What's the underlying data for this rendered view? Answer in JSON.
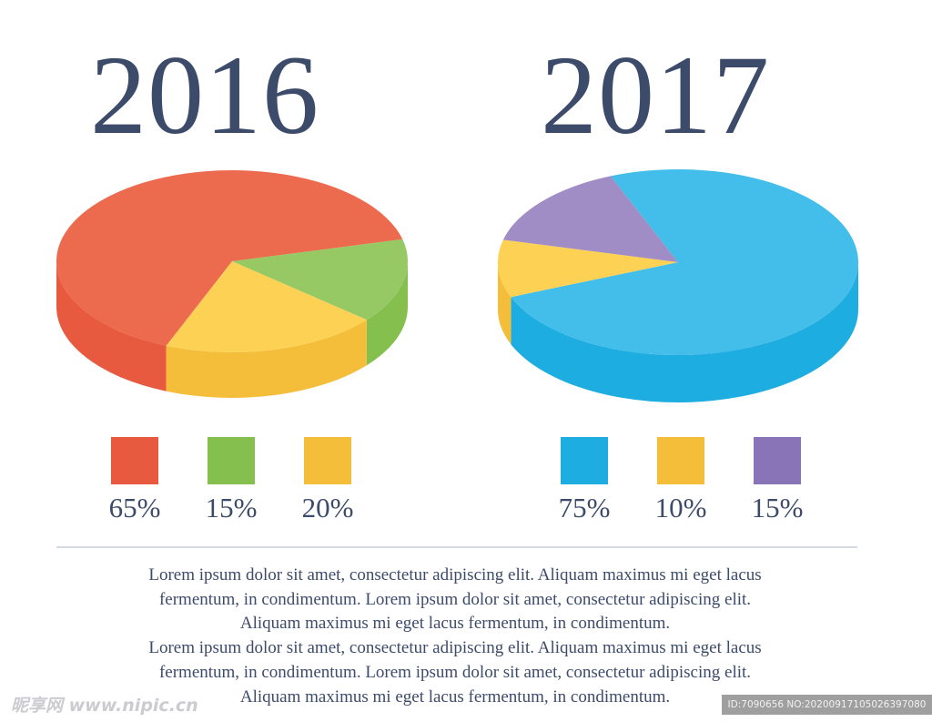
{
  "chart_data": [
    {
      "type": "pie",
      "title": "2016",
      "slices": [
        {
          "label": "65%",
          "value": 65,
          "color": "#ec6b4f",
          "side_color": "#e85a3f"
        },
        {
          "label": "15%",
          "value": 15,
          "color": "#96c964",
          "side_color": "#85bf4d"
        },
        {
          "label": "20%",
          "value": 20,
          "color": "#fdd154",
          "side_color": "#f5be3a"
        }
      ]
    },
    {
      "type": "pie",
      "title": "2017",
      "slices": [
        {
          "label": "75%",
          "value": 75,
          "color": "#43bde9",
          "side_color": "#1eade0"
        },
        {
          "label": "10%",
          "value": 10,
          "color": "#fdd154",
          "side_color": "#f5be3a"
        },
        {
          "label": "15%",
          "value": 15,
          "color": "#a08dc6",
          "side_color": "#8874b6"
        }
      ]
    }
  ],
  "legend_2016": [
    {
      "label": "65%",
      "color": "#e85a3f"
    },
    {
      "label": "15%",
      "color": "#85bf4d"
    },
    {
      "label": "20%",
      "color": "#f5be3a"
    }
  ],
  "legend_2017": [
    {
      "label": "75%",
      "color": "#1eade0"
    },
    {
      "label": "10%",
      "color": "#f5be3a"
    },
    {
      "label": "15%",
      "color": "#8874b6"
    }
  ],
  "body_lines": [
    "Lorem ipsum dolor sit amet, consectetur adipiscing elit. Aliquam maximus mi eget lacus",
    "fermentum, in condimentum. Lorem ipsum dolor sit amet, consectetur adipiscing elit.",
    "Aliquam maximus mi eget lacus fermentum, in condimentum.",
    "Lorem ipsum dolor sit amet, consectetur adipiscing elit. Aliquam maximus mi eget lacus",
    "fermentum, in condimentum. Lorem ipsum dolor sit amet, consectetur adipiscing elit.",
    "Aliquam maximus mi eget lacus fermentum, in condimentum."
  ],
  "watermark": {
    "left": "昵享网 www.nipic.cn",
    "right": "ID:7090656 NO:20200917105026397080"
  }
}
